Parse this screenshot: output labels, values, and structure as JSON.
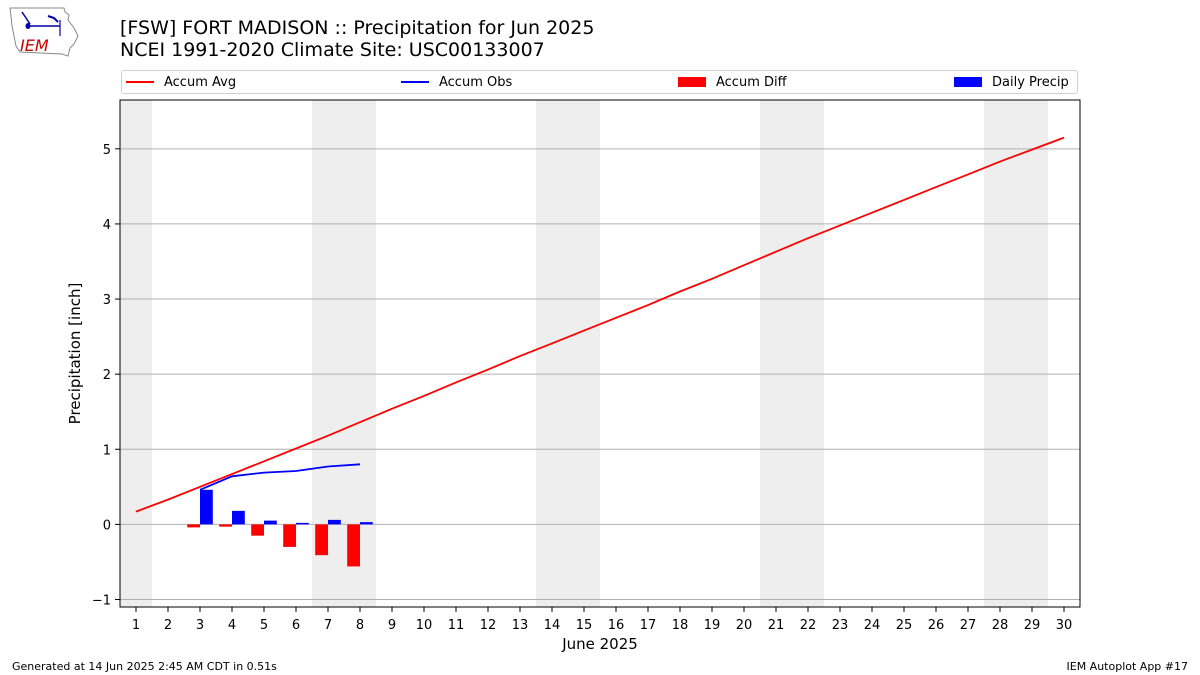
{
  "title_line1": "[FSW] FORT MADISON :: Precipitation for Jun 2025",
  "title_line2": "NCEI 1991-2020 Climate Site: USC00133007",
  "logo_text": "IEM",
  "footer_left": "Generated at 14 Jun 2025 2:45 AM CDT in 0.51s",
  "footer_right": "IEM Autoplot App #17",
  "colors": {
    "accum_avg": "#ff0000",
    "accum_obs": "#0000ff",
    "accum_diff": "#ff0000",
    "daily_precip": "#0000ff",
    "weekend_shade": "#eeeeee",
    "grid": "#b0b0b0"
  },
  "chart_data": {
    "type": "bar",
    "xlabel": "June 2025",
    "ylabel": "Precipitation [inch]",
    "xlim": [
      0.5,
      30.5
    ],
    "ylim": [
      -1.1,
      5.65
    ],
    "yticks": [
      -1,
      0,
      1,
      2,
      3,
      4,
      5
    ],
    "days": [
      1,
      2,
      3,
      4,
      5,
      6,
      7,
      8,
      9,
      10,
      11,
      12,
      13,
      14,
      15,
      16,
      17,
      18,
      19,
      20,
      21,
      22,
      23,
      24,
      25,
      26,
      27,
      28,
      29,
      30
    ],
    "weekend_days": [
      1,
      7,
      8,
      14,
      15,
      21,
      22,
      28,
      29
    ],
    "grid": "y",
    "legend_position": "top",
    "series": [
      {
        "name": "Accum Avg",
        "kind": "line",
        "x": [
          1,
          2,
          3,
          4,
          5,
          6,
          7,
          8,
          9,
          10,
          11,
          12,
          13,
          14,
          15,
          16,
          17,
          18,
          19,
          20,
          21,
          22,
          23,
          24,
          25,
          26,
          27,
          28,
          29,
          30
        ],
        "values": [
          0.17,
          0.33,
          0.5,
          0.67,
          0.84,
          1.01,
          1.18,
          1.36,
          1.54,
          1.71,
          1.89,
          2.06,
          2.24,
          2.41,
          2.58,
          2.75,
          2.92,
          3.1,
          3.27,
          3.45,
          3.63,
          3.81,
          3.98,
          4.15,
          4.32,
          4.49,
          4.66,
          4.83,
          4.99,
          5.15
        ]
      },
      {
        "name": "Accum Obs",
        "kind": "line",
        "x": [
          3,
          4,
          5,
          6,
          7,
          8
        ],
        "values": [
          0.46,
          0.64,
          0.69,
          0.71,
          0.77,
          0.8
        ]
      },
      {
        "name": "Accum Diff",
        "kind": "bar",
        "x": [
          3,
          4,
          5,
          6,
          7,
          8
        ],
        "values": [
          -0.04,
          -0.03,
          -0.15,
          -0.3,
          -0.41,
          -0.56
        ]
      },
      {
        "name": "Daily Precip",
        "kind": "bar",
        "x": [
          3,
          4,
          5,
          6,
          7,
          8
        ],
        "values": [
          0.46,
          0.18,
          0.05,
          0.02,
          0.06,
          0.03
        ]
      }
    ]
  }
}
